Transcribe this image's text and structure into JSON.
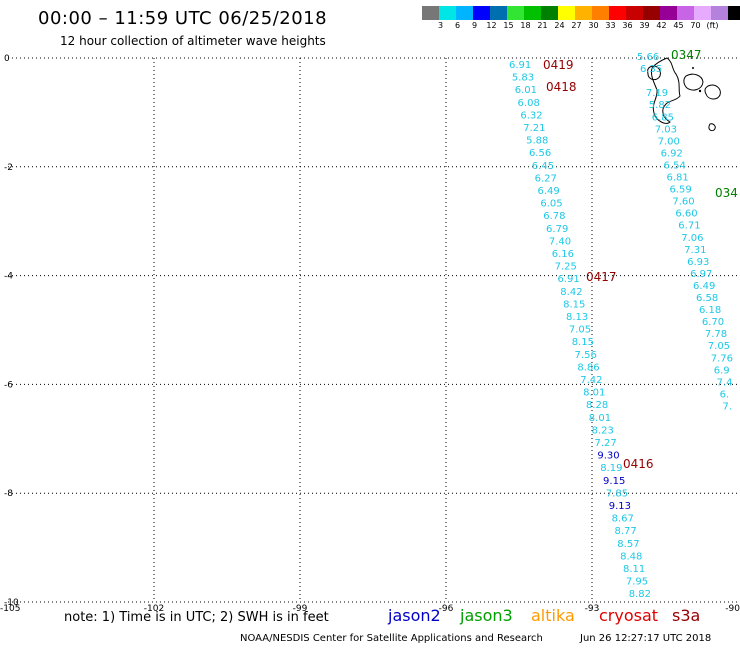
{
  "header": {
    "title": "00:00 – 11:59 UTC 06/25/2018",
    "subtitle": "12 hour collection of altimeter wave heights"
  },
  "colorbar": {
    "colors": [
      "#777777",
      "#00e5e5",
      "#00b4ff",
      "#0000ff",
      "#006fb0",
      "#33e533",
      "#00c000",
      "#008000",
      "#ffff00",
      "#ffb300",
      "#ff8000",
      "#ff0000",
      "#c80000",
      "#960000",
      "#960096",
      "#c864e6",
      "#e6aaff",
      "#b482dc",
      "#000000"
    ],
    "labels": [
      "3",
      "6",
      "9",
      "12",
      "15",
      "18",
      "21",
      "24",
      "27",
      "30",
      "33",
      "36",
      "39",
      "42",
      "45",
      "70",
      "(ft)"
    ]
  },
  "map": {
    "x_axis": {
      "min": -105,
      "max": -90,
      "ticks": [
        "-105",
        "-102",
        "-99",
        "-96",
        "-93",
        "-90"
      ]
    },
    "y_axis": {
      "min": -10,
      "max": 0,
      "ticks": [
        "0",
        "-2",
        "-4",
        "-6",
        "-8",
        "-10"
      ]
    },
    "tracks": [
      {
        "color": "#1ec8e6",
        "values": [
          "6.91",
          "5.83",
          "6.01",
          "6.08",
          "6.32",
          "7.21",
          "5.88",
          "6.56",
          "6.45",
          "6.27",
          "6.49",
          "6.05",
          "6.78",
          "6.79",
          "7.40",
          "6.16",
          "7.25",
          "6.91",
          "8.42",
          "8.15",
          "8.13",
          "7.05",
          "8.15",
          "7.56",
          "8.86",
          "7.42",
          "8.01",
          "8.28",
          "8.01",
          "8.23",
          "7.27",
          "9.30",
          "8.19",
          "9.15",
          "7.85",
          "9.13",
          "8.67",
          "8.77",
          "8.57",
          "8.48",
          "8.11",
          "7.95",
          "8.82"
        ],
        "blue_indices": [
          31,
          33,
          35
        ]
      },
      {
        "color": "#1ec8e6",
        "values": [
          "5.66",
          "6.35",
          "",
          "7.19",
          "5.82",
          "6.85",
          "7.03",
          "7.00",
          "6.92",
          "6.54",
          "6.81",
          "6.59",
          "7.60",
          "6.60",
          "6.71",
          "7.06",
          "7.31",
          "6.93",
          "6.97",
          "6.49",
          "6.58",
          "6.18",
          "6.70",
          "7.78",
          "7.05",
          "7.76",
          "6.9",
          "7.4",
          "6.",
          "7."
        ],
        "blue_indices": []
      }
    ],
    "pass_labels": [
      {
        "text": "0419",
        "color": "#960000"
      },
      {
        "text": "0418",
        "color": "#960000"
      },
      {
        "text": "0417",
        "color": "#960000"
      },
      {
        "text": "0416",
        "color": "#960000"
      },
      {
        "text": "0347",
        "color": "#008000"
      },
      {
        "text": "034",
        "color": "#008000"
      }
    ]
  },
  "footer": {
    "note": "note: 1) Time is in UTC; 2) SWH is in feet",
    "missions": [
      {
        "name": "jason2",
        "color": "#0000c8"
      },
      {
        "name": "jason3",
        "color": "#00a000"
      },
      {
        "name": "altika",
        "color": "#ff9a00"
      },
      {
        "name": "cryosat",
        "color": "#e00000"
      },
      {
        "name": "s3a",
        "color": "#960000"
      }
    ],
    "credit": "NOAA/NESDIS Center for Satellite Applications and Research",
    "timestamp": "Jun 26 12:27:17 UTC 2018"
  }
}
